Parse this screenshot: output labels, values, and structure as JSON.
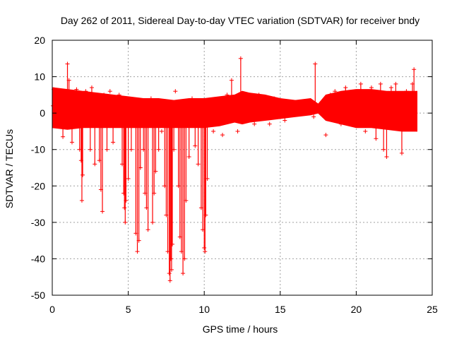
{
  "chart_data": {
    "type": "scatter",
    "title": "Day 262 of 2011, Sidereal Day-to-day VTEC variation (SDTVAR) for receiver bndy",
    "xlabel": "GPS time / hours",
    "ylabel": "SDTVAR / TECUs",
    "xlim": [
      0,
      25
    ],
    "ylim": [
      -50,
      20
    ],
    "xticks": [
      0,
      5,
      10,
      15,
      20,
      25
    ],
    "yticks": [
      -50,
      -40,
      -30,
      -20,
      -10,
      0,
      10,
      20
    ],
    "xtick_labels": [
      "0",
      "5",
      "10",
      "15",
      "20",
      "25"
    ],
    "ytick_labels": [
      "-50",
      "-40",
      "-30",
      "-20",
      "-10",
      "0",
      "10",
      "20"
    ],
    "grid": true,
    "marker": "+",
    "color": "#ff0000",
    "series": [
      {
        "name": "SDTVAR",
        "x": [
          0.05,
          0.1,
          0.3,
          0.5,
          0.7,
          0.95,
          1.0,
          1.1,
          1.3,
          1.6,
          1.8,
          1.9,
          1.95,
          2.0,
          2.2,
          2.5,
          2.6,
          2.8,
          3.0,
          3.1,
          3.2,
          3.3,
          3.4,
          3.6,
          3.8,
          4.0,
          4.2,
          4.4,
          4.6,
          4.7,
          4.75,
          4.8,
          4.85,
          5.0,
          5.2,
          5.5,
          5.6,
          5.7,
          5.8,
          6.0,
          6.1,
          6.2,
          6.3,
          6.5,
          6.6,
          6.7,
          6.8,
          7.0,
          7.2,
          7.4,
          7.5,
          7.6,
          7.7,
          7.75,
          7.8,
          7.85,
          7.9,
          8.0,
          8.1,
          8.2,
          8.3,
          8.4,
          8.5,
          8.6,
          8.7,
          8.8,
          9.0,
          9.2,
          9.4,
          9.6,
          9.8,
          9.9,
          10.0,
          10.05,
          10.1,
          10.2,
          10.4,
          10.6,
          10.8,
          11.0,
          11.2,
          11.5,
          11.8,
          12.0,
          12.2,
          12.4,
          12.5,
          12.7,
          13.0,
          13.3,
          13.6,
          14.0,
          14.3,
          14.6,
          15.0,
          15.3,
          15.6,
          16.0,
          16.3,
          16.6,
          17.0,
          17.2,
          17.3,
          17.6,
          18.0,
          18.3,
          18.6,
          19.0,
          19.3,
          19.6,
          20.0,
          20.3,
          20.6,
          21.0,
          21.3,
          21.6,
          21.8,
          22.0,
          22.3,
          22.6,
          23.0,
          23.3,
          23.5,
          23.7,
          23.8,
          23.9
        ],
        "y": [
          2.0,
          6.5,
          -3.0,
          5.0,
          -6.5,
          0.0,
          13.5,
          9.0,
          -8.0,
          6.5,
          -10.0,
          -13.0,
          -24.0,
          -17.0,
          6.0,
          -10.0,
          7.0,
          -14.0,
          4.0,
          -13.0,
          -21.0,
          -27.0,
          5.0,
          -10.0,
          6.0,
          -8.0,
          2.0,
          5.0,
          -14.0,
          -22.0,
          -26.0,
          -30.0,
          -24.0,
          -18.0,
          -10.0,
          -33.0,
          -38.0,
          -35.0,
          -15.0,
          -10.0,
          -22.0,
          -26.0,
          -32.0,
          4.0,
          -30.0,
          -22.0,
          -16.0,
          -10.0,
          -5.0,
          -20.0,
          -28.0,
          -38.0,
          -44.0,
          -46.0,
          -40.0,
          -43.0,
          -36.0,
          -10.0,
          6.0,
          3.0,
          -20.0,
          -34.0,
          -38.0,
          -44.0,
          -40.0,
          -24.0,
          -12.0,
          4.0,
          -9.0,
          -14.0,
          -26.0,
          -32.0,
          -37.0,
          -38.0,
          -28.0,
          -18.0,
          3.0,
          -5.0,
          2.0,
          4.0,
          -6.0,
          5.0,
          9.0,
          2.0,
          -5.0,
          15.0,
          5.0,
          3.0,
          5.0,
          -3.0,
          5.0,
          3.0,
          -3.0,
          4.0,
          3.0,
          -2.0,
          2.0,
          3.0,
          0.0,
          2.0,
          3.0,
          -1.0,
          13.5,
          1.0,
          -6.0,
          5.0,
          6.0,
          -3.0,
          7.0,
          -3.0,
          4.0,
          8.0,
          -5.0,
          7.0,
          -7.0,
          8.0,
          -10.0,
          -12.0,
          7.0,
          8.0,
          -11.0,
          6.0,
          5.0,
          8.0,
          12.0,
          0.0
        ]
      }
    ],
    "band": {
      "x": [
        0,
        1,
        2,
        3,
        4,
        5,
        6,
        7,
        8,
        9,
        10,
        11,
        12,
        12.5,
        13,
        14,
        15,
        16,
        17,
        17.5,
        18,
        19,
        20,
        21,
        22,
        23,
        24
      ],
      "upper": [
        7.0,
        6.5,
        6.0,
        5.5,
        5.0,
        4.5,
        4.0,
        4.0,
        3.5,
        4.0,
        4.0,
        4.5,
        5.0,
        6.0,
        5.5,
        5.0,
        4.0,
        3.5,
        4.0,
        2.5,
        5.0,
        6.0,
        6.5,
        6.5,
        6.0,
        6.0,
        6.0
      ],
      "lower": [
        -4.0,
        -4.5,
        -4.0,
        -4.0,
        -4.0,
        -4.0,
        -4.0,
        -4.0,
        -4.0,
        -4.0,
        -4.0,
        -3.5,
        -2.5,
        -3.0,
        -2.5,
        -2.0,
        -1.5,
        -1.0,
        -0.5,
        0.0,
        -2.0,
        -3.0,
        -4.0,
        -4.0,
        -4.5,
        -5.0,
        -5.0
      ]
    }
  }
}
